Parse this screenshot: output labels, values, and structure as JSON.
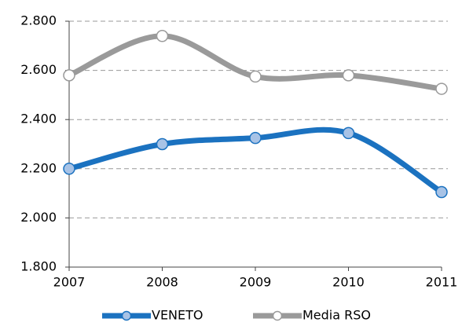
{
  "chart_data": {
    "type": "line",
    "categories": [
      "2007",
      "2008",
      "2009",
      "2010",
      "2011"
    ],
    "series": [
      {
        "name": "VENETO",
        "color": "#1b72c0",
        "marker_fill": "#a8c3e6",
        "values": [
          2200,
          2300,
          2325,
          2345,
          2105
        ]
      },
      {
        "name": "Media RSO",
        "color": "#9a9a9a",
        "marker_fill": "#ffffff",
        "values": [
          2580,
          2740,
          2575,
          2580,
          2525
        ]
      }
    ],
    "ylim": [
      1800,
      2800
    ],
    "yticks": [
      {
        "value": 1800,
        "label": "1.800"
      },
      {
        "value": 2000,
        "label": "2.000"
      },
      {
        "value": 2200,
        "label": "2.200"
      },
      {
        "value": 2400,
        "label": "2.400"
      },
      {
        "value": 2600,
        "label": "2.600"
      },
      {
        "value": 2800,
        "label": "2.800"
      }
    ],
    "grid": true,
    "legend": "bottom"
  }
}
